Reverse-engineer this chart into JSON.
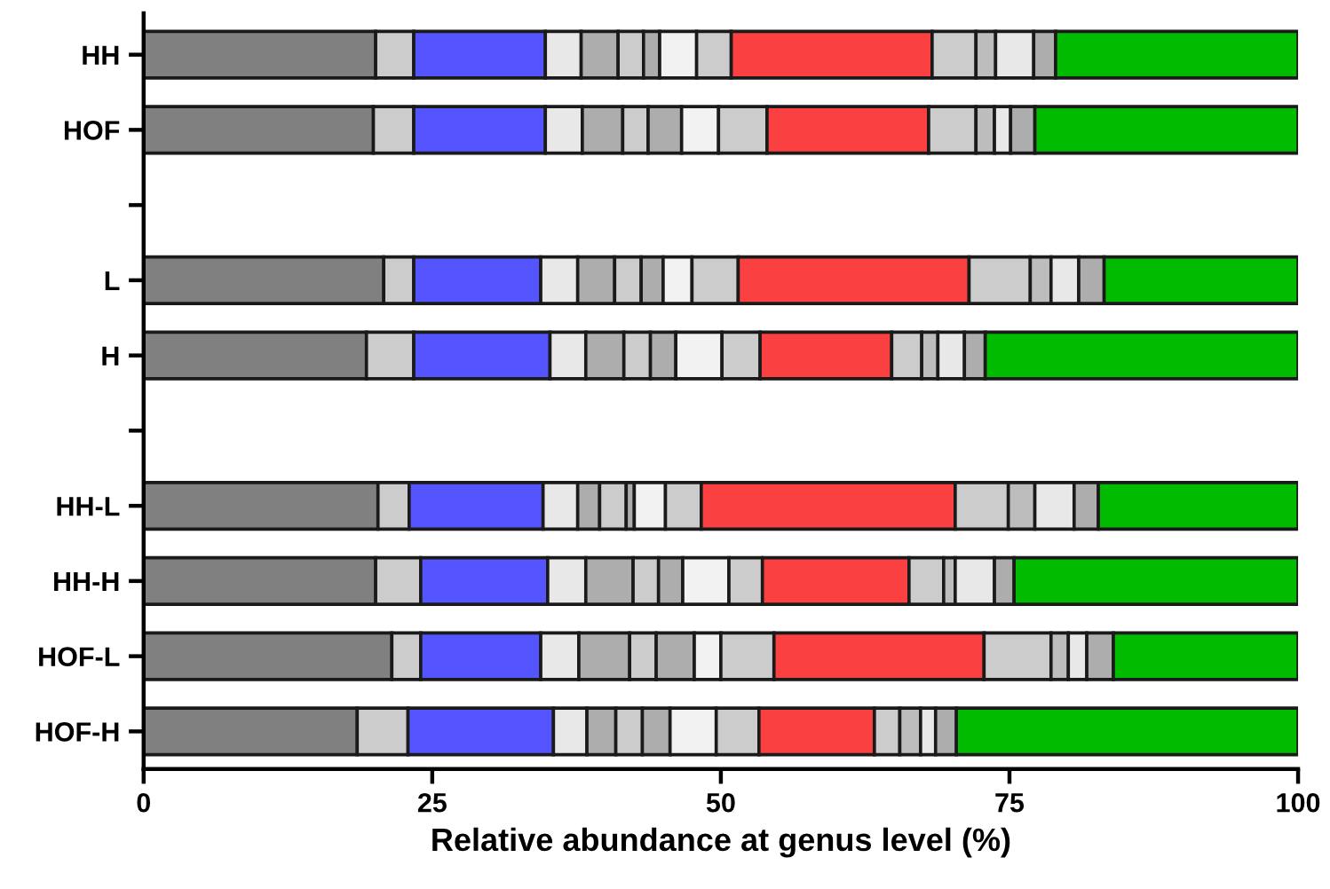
{
  "chart_data": {
    "type": "bar",
    "orientation": "horizontal",
    "stacked": true,
    "categories": [
      "HH",
      "HOF",
      null,
      "L",
      "H",
      null,
      "HH-L",
      "HH-H",
      "HOF-L",
      "HOF-H"
    ],
    "xlabel": "Relative abundance at genus level (%)",
    "xlim": [
      0,
      100
    ],
    "xticks": [
      0,
      25,
      50,
      75,
      100
    ],
    "grid": false,
    "legend": false,
    "series": [
      {
        "color": "#808080",
        "values": [
          20.1,
          19.9,
          null,
          20.8,
          19.3,
          null,
          20.3,
          20.1,
          21.5,
          18.5
        ]
      },
      {
        "color": "#cccccc",
        "values": [
          3.3,
          3.5,
          null,
          2.6,
          4.1,
          null,
          2.7,
          3.9,
          2.5,
          4.4
        ]
      },
      {
        "color": "#5555ff",
        "values": [
          11.4,
          11.4,
          null,
          11.0,
          11.8,
          null,
          11.6,
          11.0,
          10.4,
          12.6
        ]
      },
      {
        "color": "#e8e8e8",
        "values": [
          3.1,
          3.2,
          null,
          3.2,
          3.1,
          null,
          3.0,
          3.3,
          3.3,
          2.9
        ]
      },
      {
        "color": "#adadad",
        "values": [
          3.2,
          3.5,
          null,
          3.2,
          3.3,
          null,
          1.9,
          4.1,
          4.4,
          2.5
        ]
      },
      {
        "color": "#cccccc",
        "values": [
          2.2,
          2.2,
          null,
          2.3,
          2.3,
          null,
          2.3,
          2.2,
          2.3,
          2.3
        ]
      },
      {
        "color": "#adadad",
        "values": [
          1.4,
          2.9,
          null,
          1.9,
          2.2,
          null,
          0.7,
          2.1,
          3.3,
          2.4
        ]
      },
      {
        "color": "#f2f2f2",
        "values": [
          3.2,
          3.2,
          null,
          2.5,
          4.0,
          null,
          2.7,
          4.0,
          2.3,
          4.0
        ]
      },
      {
        "color": "#cccccc",
        "values": [
          3.0,
          4.2,
          null,
          4.0,
          3.3,
          null,
          3.1,
          2.9,
          4.6,
          3.7
        ]
      },
      {
        "color": "#fa4040",
        "values": [
          17.4,
          14.0,
          null,
          20.0,
          11.4,
          null,
          22.0,
          12.7,
          18.2,
          10.0
        ]
      },
      {
        "color": "#cccccc",
        "values": [
          3.8,
          4.1,
          null,
          5.3,
          2.6,
          null,
          4.6,
          3.0,
          5.8,
          2.2
        ]
      },
      {
        "color": "#bdbdbd",
        "values": [
          1.7,
          1.6,
          null,
          1.8,
          1.4,
          null,
          2.3,
          1.0,
          1.5,
          1.8
        ]
      },
      {
        "color": "#e8e8e8",
        "values": [
          3.3,
          1.4,
          null,
          2.4,
          2.3,
          null,
          3.4,
          3.4,
          1.6,
          1.3
        ]
      },
      {
        "color": "#adadad",
        "values": [
          1.9,
          2.1,
          null,
          2.2,
          1.8,
          null,
          2.1,
          1.7,
          2.3,
          1.8
        ]
      },
      {
        "color": "#00bb00",
        "values": [
          21.0,
          22.8,
          null,
          16.8,
          27.1,
          null,
          17.3,
          24.6,
          16.0,
          29.6
        ]
      }
    ]
  }
}
